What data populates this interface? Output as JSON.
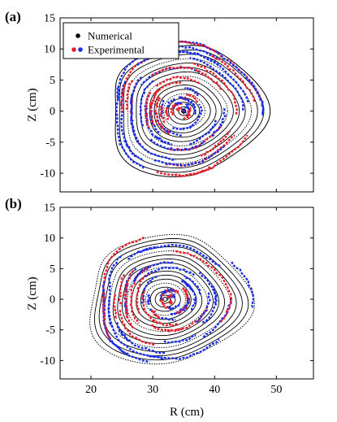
{
  "panel_a": {
    "label": "(a)",
    "legend": {
      "numerical": "Numerical",
      "experimental": "Experimental",
      "colors": {
        "numerical": "#000000",
        "exp_primary": "#e8202a",
        "exp_secondary": "#1a2fe8"
      }
    }
  },
  "panel_b": {
    "label": "(b)",
    "xlabel": "R (cm)"
  },
  "chart_data": [
    {
      "type": "scatter",
      "panel": "(a)",
      "xlabel": "",
      "ylabel": "Z (cm)",
      "xlim": [
        15,
        56
      ],
      "ylim": [
        -13,
        15
      ],
      "xticks": [],
      "yticks": [
        -10,
        -5,
        0,
        5,
        10,
        15
      ],
      "legend_position": "top-left",
      "grid": false,
      "series": [
        {
          "name": "Numerical",
          "color": "#000000",
          "center": [
            35,
            0
          ],
          "family": "nested closed flux surfaces",
          "outer_rx": 12.5,
          "outer_ry": 10.5
        },
        {
          "name": "Experimental",
          "color": "#e8202a",
          "color2": "#1a2fe8",
          "center": [
            34.5,
            0
          ],
          "family": "dashed puncture arcs",
          "outer_rx": 12.5,
          "outer_ry": 11.5
        }
      ]
    },
    {
      "type": "scatter",
      "panel": "(b)",
      "xlabel": "R (cm)",
      "ylabel": "Z (cm)",
      "xlim": [
        15,
        56
      ],
      "ylim": [
        -13,
        15
      ],
      "xticks": [
        20,
        30,
        40,
        50
      ],
      "yticks": [
        -10,
        -5,
        0,
        5,
        10,
        15
      ],
      "grid": false,
      "series": [
        {
          "name": "Numerical",
          "color": "#000000",
          "center": [
            32,
            0
          ],
          "family": "nested closed flux surfaces with island chain",
          "outer_rx": 13,
          "outer_ry": 10.5
        },
        {
          "name": "Experimental",
          "color": "#e8202a",
          "color2": "#1a2fe8",
          "center": [
            33,
            0
          ],
          "family": "dashed puncture arcs",
          "outer_rx": 12.5,
          "outer_ry": 11
        }
      ]
    }
  ]
}
